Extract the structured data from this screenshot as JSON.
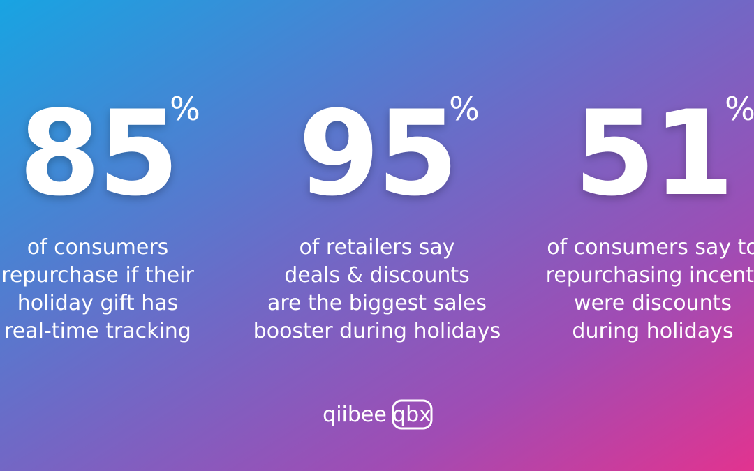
{
  "stats": [
    {
      "number": "85",
      "unit": "%",
      "lines": [
        "of consumers",
        "repurchase if their",
        "holiday gift has",
        "real-time tracking"
      ]
    },
    {
      "number": "95",
      "unit": "%",
      "lines": [
        "of retailers say",
        "deals & discounts",
        "are the biggest sales",
        "booster during holidays"
      ]
    },
    {
      "number": "51",
      "unit": "%",
      "lines": [
        "of consumers say to",
        "repurchasing incenti",
        "were discounts",
        "during holidays"
      ]
    }
  ],
  "logo": {
    "brand": "qiibee",
    "badge": "qbx"
  }
}
